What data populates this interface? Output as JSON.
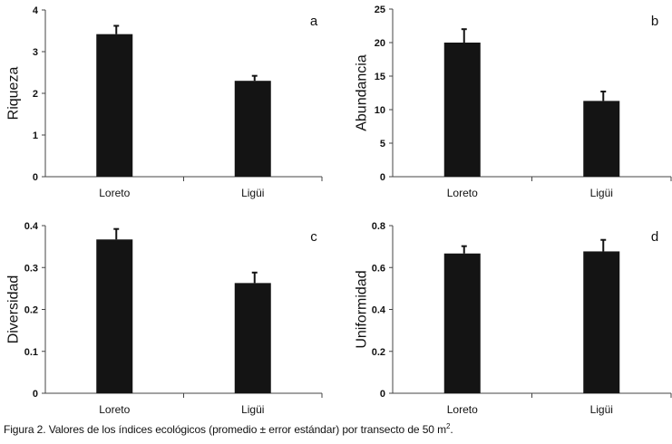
{
  "chart_data": [
    {
      "type": "bar",
      "panel": "a",
      "ylabel": "Riqueza",
      "categories": [
        "Loreto",
        "Ligüi"
      ],
      "values": [
        3.42,
        2.3
      ],
      "errors": [
        0.2,
        0.12
      ],
      "ylim": [
        0,
        4
      ],
      "yticks": [
        0,
        1,
        2,
        3,
        4
      ]
    },
    {
      "type": "bar",
      "panel": "b",
      "ylabel": "Abundancia",
      "categories": [
        "Loreto",
        "Ligüi"
      ],
      "values": [
        20,
        11.3
      ],
      "errors": [
        2,
        1.4
      ],
      "ylim": [
        0,
        25
      ],
      "yticks": [
        0,
        5,
        10,
        15,
        20,
        25
      ]
    },
    {
      "type": "bar",
      "panel": "c",
      "ylabel": "Diversidad",
      "categories": [
        "Loreto",
        "Ligüi"
      ],
      "values": [
        0.367,
        0.263
      ],
      "errors": [
        0.025,
        0.025
      ],
      "ylim": [
        0,
        0.4
      ],
      "yticks": [
        0,
        0.1,
        0.2,
        0.3,
        0.4
      ]
    },
    {
      "type": "bar",
      "panel": "d",
      "ylabel": "Uniformidad",
      "categories": [
        "Loreto",
        "Ligüi"
      ],
      "values": [
        0.667,
        0.677
      ],
      "errors": [
        0.035,
        0.055
      ],
      "ylim": [
        0,
        0.8
      ],
      "yticks": [
        0,
        0.2,
        0.4,
        0.6,
        0.8
      ]
    }
  ],
  "caption": {
    "text": "Figura 2. Valores de los índices ecológicos (promedio ± error estándar) por transecto de 50 m",
    "superscript": "2",
    "suffix": "."
  },
  "colors": {
    "bar": "#141414",
    "axis": "#444444",
    "text": "#111111"
  }
}
